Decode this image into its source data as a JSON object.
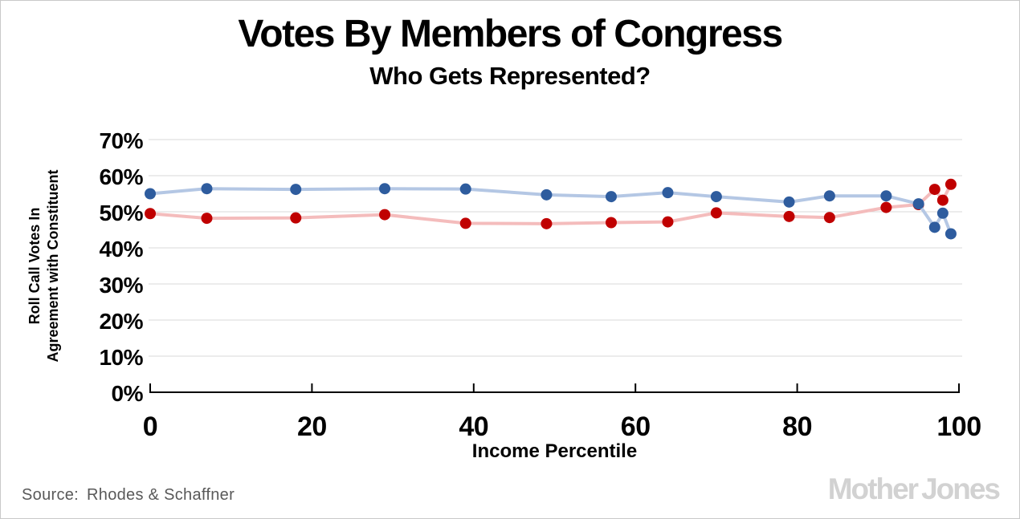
{
  "header": {
    "title": "Votes By Members of Congress",
    "subtitle": "Who Gets Represented?"
  },
  "footer": {
    "source_label": "Source:",
    "source_text": "Rhodes & Schaffner",
    "logo_part1": "Mother",
    "logo_part2": "Jones"
  },
  "colors": {
    "grid": "#d9d9d9",
    "axis": "#000000",
    "source_text": "#595959",
    "logo": "#d2d2d2"
  },
  "chart_data": {
    "type": "scatter",
    "title": "Votes By Members of Congress",
    "subtitle": "Who Gets Represented?",
    "xlabel": "Income Percentile",
    "ylabel": "Roll Call Votes In Agreement with Constituent",
    "ylabel_lines": [
      "Roll Call Votes In",
      "Agreement with Constituent"
    ],
    "xlim": [
      0,
      100
    ],
    "ylim": [
      0,
      70
    ],
    "x_ticks": [
      0,
      20,
      40,
      60,
      80,
      100
    ],
    "y_ticks": [
      0,
      10,
      20,
      30,
      40,
      50,
      60,
      70
    ],
    "y_tick_suffix": "%",
    "grid": "horizontal-only",
    "legend": "none",
    "x": [
      0,
      7,
      18,
      29,
      39,
      49,
      57,
      64,
      70,
      79,
      84,
      91,
      95,
      97,
      98,
      99
    ],
    "series": [
      {
        "name": "red-series",
        "point_color": "#c00000",
        "line_color": "#f4bcbc",
        "values": [
          49.5,
          48.2,
          48.3,
          49.2,
          46.8,
          46.7,
          47.0,
          47.2,
          49.7,
          48.7,
          48.4,
          51.2,
          52.0,
          56.2,
          53.2,
          57.6
        ]
      },
      {
        "name": "blue-series",
        "point_color": "#2e5c9e",
        "line_color": "#b4c7e4",
        "values": [
          55.0,
          56.4,
          56.2,
          56.4,
          56.3,
          54.7,
          54.2,
          55.3,
          54.2,
          52.7,
          54.4,
          54.4,
          52.2,
          45.7,
          49.6,
          43.9
        ]
      }
    ]
  }
}
